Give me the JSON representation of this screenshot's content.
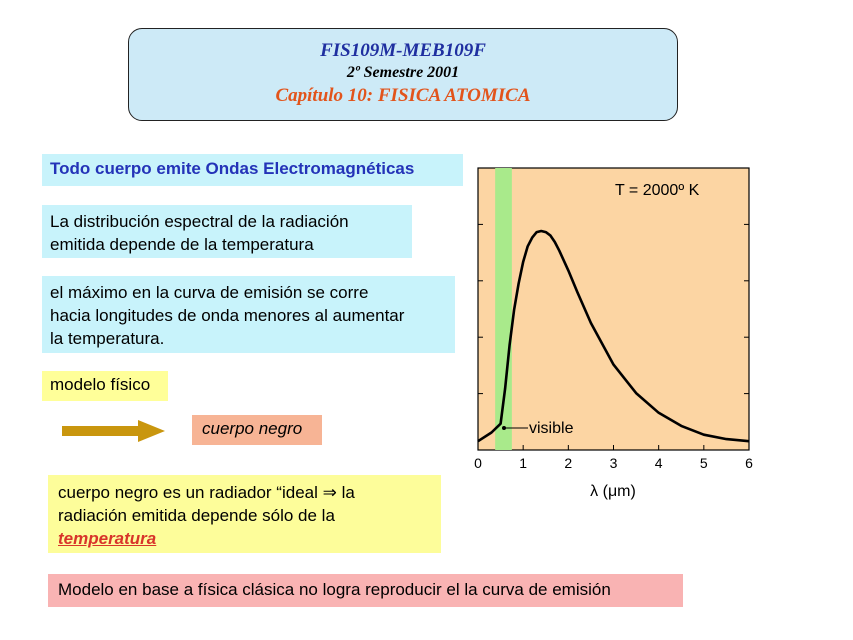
{
  "header": {
    "course": "FIS109M-MEB109F",
    "semester": "2º  Semestre 2001",
    "chapter": "Capítulo 10: FISICA ATOMICA"
  },
  "headline": "Todo cuerpo emite Ondas Electromagnéticas",
  "box_distribution": {
    "line1": "La distribución espectral de la radiación",
    "line2": "emitida depende de la temperatura"
  },
  "box_maximum": {
    "line1": "el máximo en la curva de emisión se corre",
    "line2": "hacia longitudes de onda menores al aumentar",
    "line3": "la temperatura."
  },
  "label_model": "modelo físico",
  "label_blackbody": "cuerpo negro",
  "box_ideal": {
    "line1": "cuerpo negro es un radiador “ideal ⇒ la",
    "line2": "radiación emitida depende sólo de la",
    "emphasis": "temperatura"
  },
  "box_classical": "Modelo en base a física clásica no logra reproducir el la curva de emisión",
  "chart_data": {
    "type": "line",
    "annotation_temperature": "T = 2000º K",
    "annotation_visible": "visible",
    "xlabel": "λ (μm)",
    "ylabel": "",
    "xlim": [
      0,
      6
    ],
    "x_ticks": [
      "0",
      "1",
      "2",
      "3",
      "4",
      "5",
      "6"
    ],
    "visible_band": [
      0.38,
      0.75
    ],
    "series": [
      {
        "x": [
          0.0,
          0.3,
          0.5,
          0.6,
          0.7,
          0.8,
          0.9,
          1.0,
          1.1,
          1.2,
          1.3,
          1.4,
          1.5,
          1.6,
          1.7,
          1.8,
          2.0,
          2.2,
          2.5,
          3.0,
          3.5,
          4.0,
          4.5,
          5.0,
          5.5,
          6.0
        ],
        "y": [
          0.04,
          0.08,
          0.12,
          0.28,
          0.48,
          0.64,
          0.76,
          0.86,
          0.93,
          0.97,
          0.995,
          1.0,
          0.995,
          0.98,
          0.95,
          0.91,
          0.82,
          0.72,
          0.58,
          0.39,
          0.26,
          0.17,
          0.11,
          0.07,
          0.05,
          0.04
        ]
      }
    ],
    "colors": {
      "background": "#fcd5a3",
      "visible_band": "#a9ea8b",
      "curve": "#000000"
    }
  }
}
